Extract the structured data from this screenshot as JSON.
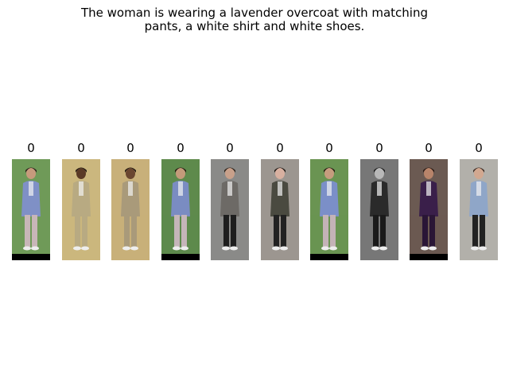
{
  "query": {
    "caption_lines": [
      "The woman is wearing a lavender overcoat with matching",
      "pants, a white shirt and white shoes."
    ]
  },
  "results": [
    {
      "label": "0",
      "background": "#6f9a58",
      "coat": "#7f90c6",
      "pants": "#c8b6b8",
      "hair": "#2a1f1a",
      "skin": "#c79a7c",
      "bar_bottom": true
    },
    {
      "label": "0",
      "background": "#cbb77e",
      "coat": "#b8aa82",
      "pants": "#b8aa82",
      "hair": "#1e1610",
      "skin": "#5a3a26",
      "bar_bottom": false
    },
    {
      "label": "0",
      "background": "#c8b07a",
      "coat": "#a99a7a",
      "pants": "#a99a7a",
      "hair": "#1e1610",
      "skin": "#6a4630",
      "bar_bottom": false
    },
    {
      "label": "0",
      "background": "#5e8a4c",
      "coat": "#7a8cc2",
      "pants": "#c5b5b9",
      "hair": "#24190f",
      "skin": "#c49a7a",
      "bar_bottom": true
    },
    {
      "label": "0",
      "background": "#8a8a88",
      "coat": "#6d6a66",
      "pants": "#1e1e1e",
      "hair": "#2b2018",
      "skin": "#c8a08a",
      "bar_bottom": false
    },
    {
      "label": "0",
      "background": "#9c9690",
      "coat": "#4a4a40",
      "pants": "#222222",
      "hair": "#1a1410",
      "skin": "#d8b0a0",
      "bar_bottom": false
    },
    {
      "label": "0",
      "background": "#6a9452",
      "coat": "#7b8fc8",
      "pants": "#c4b3b7",
      "hair": "#22180f",
      "skin": "#c69c7e",
      "bar_bottom": true
    },
    {
      "label": "0",
      "background": "#777777",
      "coat": "#2a2a2a",
      "pants": "#1a1a1a",
      "hair": "#1a1a1a",
      "skin": "#b8b8b8",
      "bar_bottom": false
    },
    {
      "label": "0",
      "background": "#6b5a52",
      "coat": "#3a1f4a",
      "pants": "#2a1636",
      "hair": "#2a1a14",
      "skin": "#b8846a",
      "bar_bottom": true
    },
    {
      "label": "0",
      "background": "#b2b0aa",
      "coat": "#8fa6c8",
      "pants": "#222222",
      "hair": "#3a2a22",
      "skin": "#d2a890",
      "bar_bottom": false
    }
  ]
}
